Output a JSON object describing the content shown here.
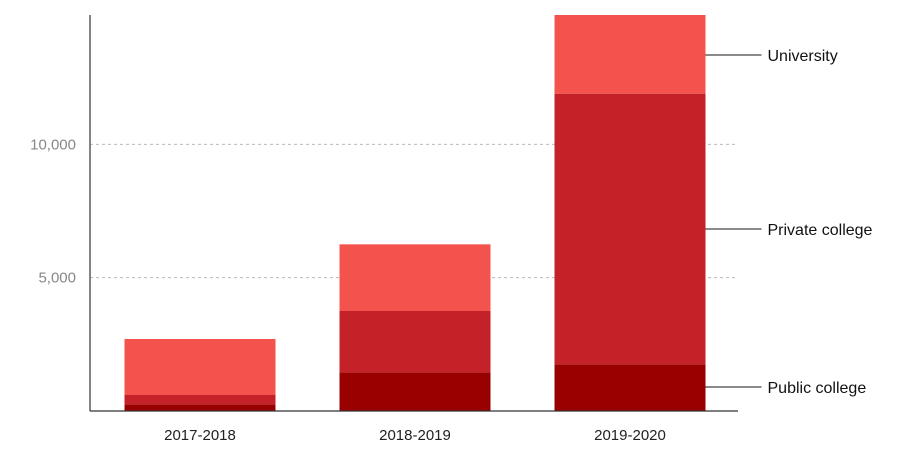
{
  "chart_data": {
    "type": "bar",
    "stacked": true,
    "categories": [
      "2017-2018",
      "2018-2019",
      "2019-2020"
    ],
    "series": [
      {
        "name": "Public college",
        "color": "#990000",
        "values": [
          250,
          1450,
          1750
        ]
      },
      {
        "name": "Private college",
        "color": "#c42128",
        "values": [
          350,
          2300,
          10150
        ]
      },
      {
        "name": "University",
        "color": "#f3534c",
        "values": [
          2100,
          2500,
          2950
        ]
      }
    ],
    "ylim": [
      0,
      14850
    ],
    "yticks": [
      5000,
      10000
    ],
    "ytick_labels": [
      "5,000",
      "10,000"
    ],
    "grid": true,
    "legend": "right, labels beside final bar"
  }
}
